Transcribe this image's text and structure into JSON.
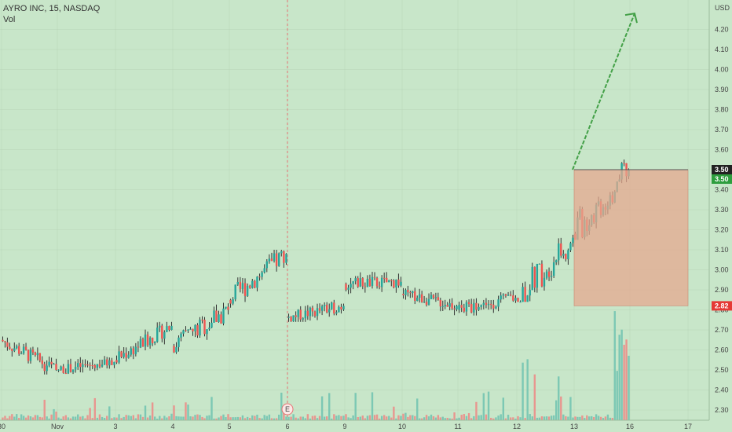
{
  "header": {
    "symbol_line": "AYRO INC, 15, NASDAQ",
    "volume_label": "Vol"
  },
  "colors": {
    "background": "#c8e6c9",
    "up": "#26a69a",
    "down": "#ef5350",
    "wick": "#333333",
    "grid": "#b7d4b8",
    "arrow": "#43a047",
    "target_zone": "#e6a88f",
    "earnings_line": "#e57373",
    "last_price_tag": "#222222",
    "entry_tag": "#2e9e3e",
    "stop_tag": "#e53935"
  },
  "chart_data": {
    "type": "candlestick",
    "title": "AYRO INC, 15, NASDAQ",
    "ylabel": "USD",
    "ylim": [
      2.25,
      4.33
    ],
    "y_ticks": [
      "USD",
      "4.20",
      "4.10",
      "4.00",
      "3.90",
      "3.80",
      "3.70",
      "3.60",
      "3.50",
      "3.40",
      "3.30",
      "3.20",
      "3.10",
      "3.00",
      "2.90",
      "2.80",
      "2.70",
      "2.60",
      "2.50",
      "2.40",
      "2.30"
    ],
    "x_ticks": [
      "30",
      "Nov",
      "3",
      "4",
      "5",
      "6",
      "9",
      "10",
      "11",
      "12",
      "13",
      "16",
      "17"
    ],
    "grid": true,
    "series": [
      {
        "name": "Vol",
        "kind": "volume"
      }
    ],
    "price_tags": [
      {
        "label": "3.50",
        "value": 3.5,
        "role": "last"
      },
      {
        "label": "3.50",
        "value": 3.5,
        "role": "entry"
      },
      {
        "label": "2.82",
        "value": 2.82,
        "role": "stop"
      }
    ],
    "annotations": [
      {
        "type": "arrow",
        "from": {
          "x": "13",
          "price": 3.5
        },
        "to": {
          "x": "16",
          "price": 4.28
        }
      },
      {
        "type": "zone",
        "from_x": "13",
        "to_x": "17",
        "top": 3.5,
        "bottom": 2.82
      },
      {
        "type": "event",
        "x": "6",
        "label": "E"
      }
    ],
    "days": [
      {
        "label": "30",
        "o": 2.65,
        "c": 2.5,
        "min": 2.47,
        "max": 2.68,
        "vol": 12
      },
      {
        "label": "Nov",
        "o": 2.5,
        "c": 2.54,
        "min": 2.48,
        "max": 2.62,
        "vol": 14
      },
      {
        "label": "3",
        "o": 2.55,
        "c": 2.72,
        "min": 2.53,
        "max": 2.74,
        "vol": 16
      },
      {
        "label": "4",
        "o": 2.62,
        "c": 2.8,
        "min": 2.58,
        "max": 2.9,
        "vol": 20
      },
      {
        "label": "5",
        "o": 2.85,
        "c": 3.08,
        "min": 2.8,
        "max": 3.1,
        "vol": 22
      },
      {
        "label": "6",
        "o": 2.76,
        "c": 2.82,
        "min": 2.74,
        "max": 2.91,
        "vol": 18
      },
      {
        "label": "9",
        "o": 2.93,
        "c": 2.94,
        "min": 2.86,
        "max": 3.04,
        "vol": 20
      },
      {
        "label": "10",
        "o": 2.88,
        "c": 2.82,
        "min": 2.76,
        "max": 2.92,
        "vol": 22
      },
      {
        "label": "11",
        "o": 2.8,
        "c": 2.86,
        "min": 2.72,
        "max": 2.9,
        "vol": 20
      },
      {
        "label": "12",
        "o": 2.86,
        "c": 3.16,
        "min": 2.84,
        "max": 3.3,
        "vol": 30
      },
      {
        "label": "13",
        "o": 3.18,
        "c": 3.5,
        "min": 3.15,
        "max": 3.64,
        "vol": 40
      }
    ]
  }
}
